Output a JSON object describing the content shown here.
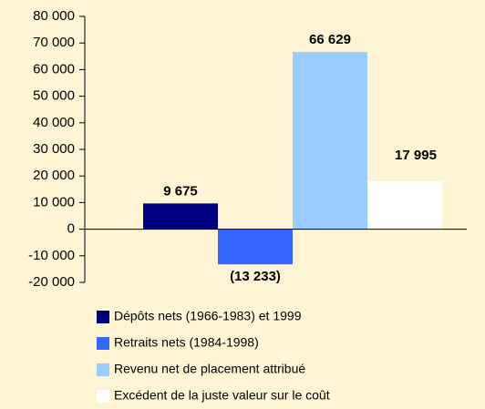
{
  "chart_data": {
    "type": "bar",
    "series": [
      {
        "name": "Dépôts nets (1966-1983) et 1999",
        "color": "#000080",
        "values": [
          9675
        ],
        "value_labels": [
          "9 675"
        ]
      },
      {
        "name": "Retraits nets (1984-1998)",
        "color": "#3366ff",
        "values": [
          -13233
        ],
        "value_labels": [
          "(13 233)"
        ]
      },
      {
        "name": "Revenu net de placement attribué",
        "color": "#99ccff",
        "values": [
          66629
        ],
        "value_labels": [
          "66 629"
        ]
      },
      {
        "name": "Excédent de la juste valeur sur le coût",
        "color": "#ffffff",
        "values": [
          17995
        ],
        "value_labels": [
          "17 995"
        ]
      }
    ],
    "ylim": [
      -20000,
      80000
    ],
    "yticks": [
      {
        "value": -20000,
        "label": "-20 000"
      },
      {
        "value": -10000,
        "label": "-10 000"
      },
      0,
      {
        "value": 10000,
        "label": "10 000"
      },
      {
        "value": 20000,
        "label": "20 000"
      },
      {
        "value": 30000,
        "label": "30 000"
      },
      {
        "value": 40000,
        "label": "40 000"
      },
      {
        "value": 50000,
        "label": "50 000"
      },
      {
        "value": 60000,
        "label": "60 000"
      },
      {
        "value": 70000,
        "label": "70 000"
      },
      {
        "value": 80000,
        "label": "80 000"
      }
    ],
    "grid": false
  }
}
